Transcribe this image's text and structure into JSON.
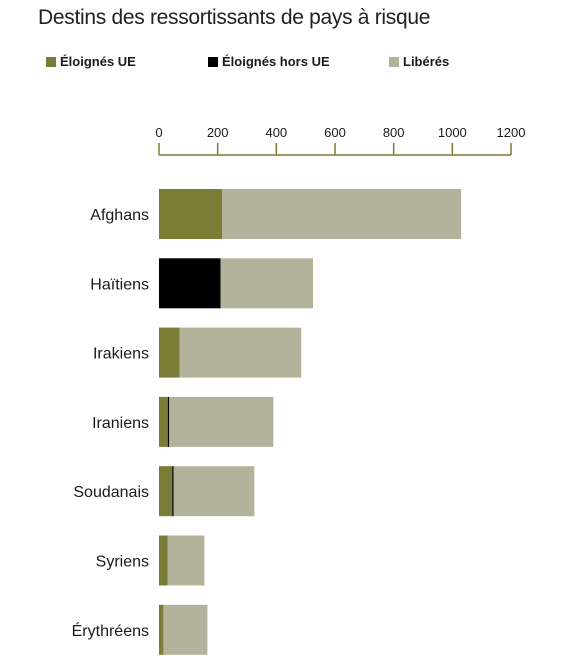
{
  "chart_data": {
    "type": "bar",
    "orientation": "horizontal",
    "stacked": true,
    "title": "Destins des ressortissants de pays à risque",
    "xlabel": "",
    "ylabel": "",
    "xlim": [
      0,
      1200
    ],
    "xticks": [
      0,
      200,
      400,
      600,
      800,
      1000,
      1200
    ],
    "grid": false,
    "legend_position": "top",
    "categories": [
      "Afghans",
      "Haïtiens",
      "Irakiens",
      "Iraniens",
      "Soudanais",
      "Syriens",
      "Érythréens"
    ],
    "series": [
      {
        "name": "Éloignés UE",
        "color": "#7b7c36",
        "values": [
          215,
          0,
          70,
          30,
          45,
          30,
          15
        ]
      },
      {
        "name": "Éloignés hors UE",
        "color": "#000000",
        "values": [
          0,
          210,
          0,
          5,
          5,
          0,
          0
        ]
      },
      {
        "name": "Libérés",
        "color": "#b3b39b",
        "values": [
          815,
          315,
          415,
          355,
          275,
          125,
          150
        ]
      }
    ]
  }
}
